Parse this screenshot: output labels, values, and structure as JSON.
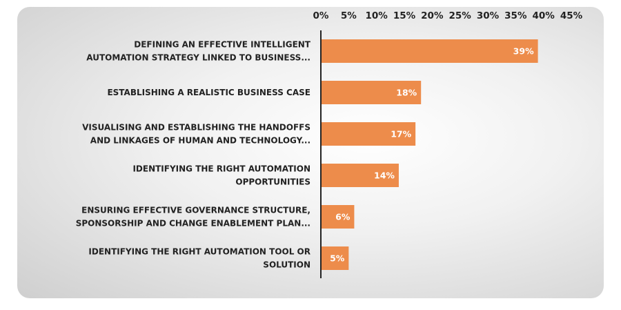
{
  "chart_data": {
    "type": "bar",
    "orientation": "horizontal",
    "title": "",
    "xlabel": "",
    "ylabel": "",
    "xlim": [
      0,
      45
    ],
    "x_ticks": [
      "0%",
      "5%",
      "10%",
      "15%",
      "20%",
      "25%",
      "30%",
      "35%",
      "40%",
      "45%"
    ],
    "x_axis_position": "top",
    "grid": false,
    "bar_color": "#ED8C4B",
    "categories": [
      [
        "DEFINING AN EFFECTIVE INTELLIGENT",
        "AUTOMATION STRATEGY LINKED TO BUSINESS..."
      ],
      [
        "ESTABLISHING A REALISTIC BUSINESS CASE"
      ],
      [
        "VISUALISING AND ESTABLISHING THE HANDOFFS",
        "AND LINKAGES OF HUMAN AND TECHNOLOGY..."
      ],
      [
        "IDENTIFYING THE RIGHT AUTOMATION",
        "OPPORTUNITIES"
      ],
      [
        "ENSURING EFFECTIVE GOVERNANCE STRUCTURE,",
        "SPONSORSHIP AND CHANGE ENABLEMENT PLAN..."
      ],
      [
        "IDENTIFYING THE RIGHT AUTOMATION TOOL OR",
        "SOLUTION"
      ]
    ],
    "values": [
      39,
      18,
      17,
      14,
      6,
      5
    ],
    "data_labels": [
      "39%",
      "18%",
      "17%",
      "14%",
      "6%",
      "5%"
    ]
  }
}
